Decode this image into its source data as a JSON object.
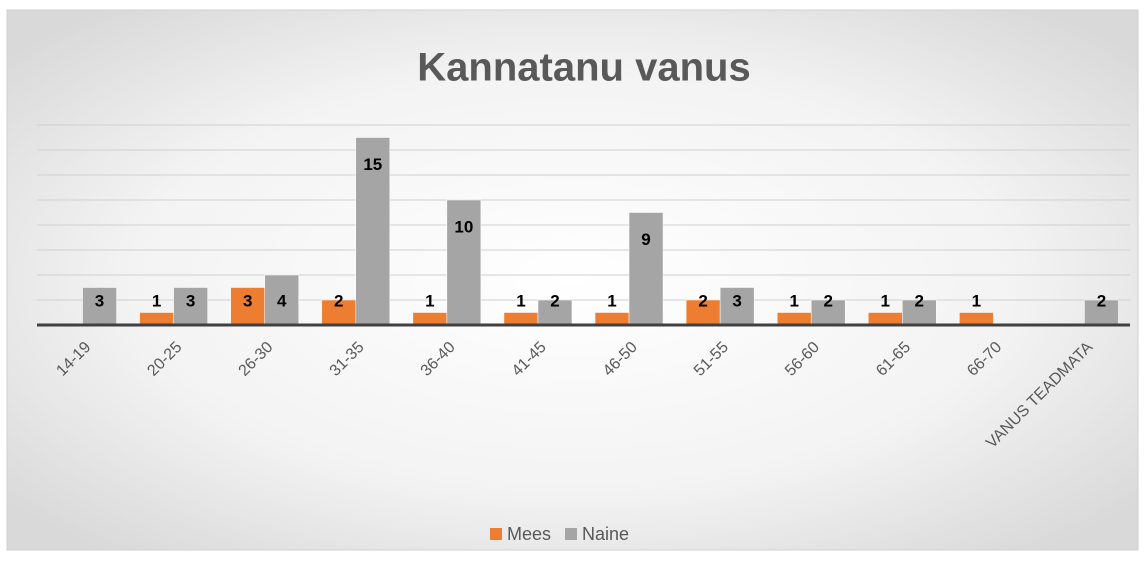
{
  "chart_data": {
    "type": "bar",
    "title": "Kannatanu vanus",
    "categories": [
      "14-19",
      "20-25",
      "26-30",
      "31-35",
      "36-40",
      "41-45",
      "46-50",
      "51-55",
      "56-60",
      "61-65",
      "66-70",
      "VANUS TEADMATA"
    ],
    "series": [
      {
        "name": "Mees",
        "color": "#ed7d31",
        "values": [
          null,
          1,
          3,
          2,
          1,
          1,
          1,
          2,
          1,
          1,
          1,
          null
        ]
      },
      {
        "name": "Naine",
        "color": "#a5a5a5",
        "values": [
          3,
          3,
          4,
          15,
          10,
          2,
          9,
          3,
          2,
          2,
          null,
          2
        ]
      }
    ],
    "ylim": [
      0,
      16
    ],
    "yticks": [
      0,
      2,
      4,
      6,
      8,
      10,
      12,
      14,
      16
    ],
    "grid": true,
    "legend": "bottom"
  }
}
